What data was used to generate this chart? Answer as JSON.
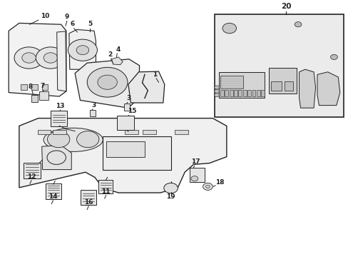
{
  "bg_color": "#ffffff",
  "line_color": "#222222",
  "light_fill": "#f0f0f0",
  "box20_fill": "#e8e8e8",
  "fig_width": 4.89,
  "fig_height": 3.6,
  "dpi": 100
}
